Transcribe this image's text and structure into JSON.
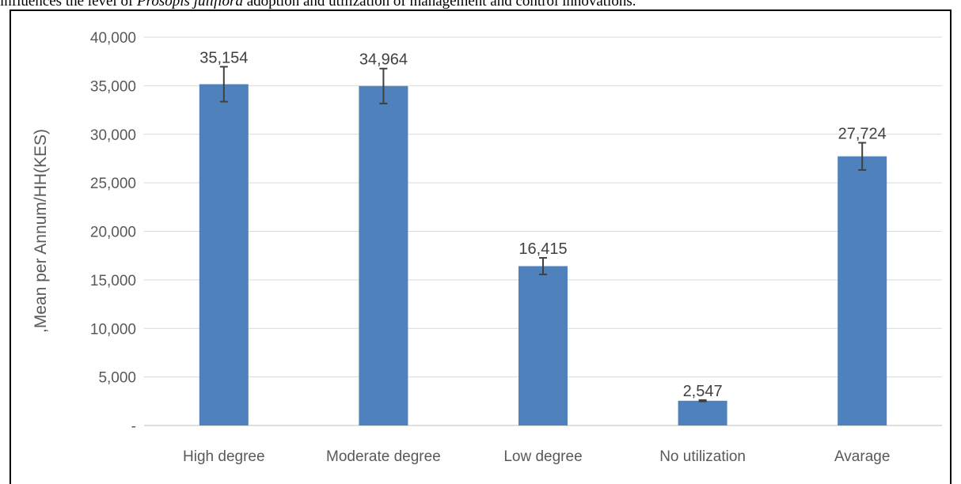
{
  "caption": {
    "before": "influences the level of ",
    "italic": "Prosopis juliflora",
    "after": " adoption and utilization of management and control innovations."
  },
  "chart_data": {
    "type": "bar",
    "title": "",
    "xlabel": "",
    "ylabel": ",Mean per Annum/HH(KES)",
    "categories": [
      "High degree",
      "Moderate degree",
      "Low degree",
      "No utilization",
      "Avarage"
    ],
    "values": [
      35154,
      34964,
      16415,
      2547,
      27724
    ],
    "value_labels": [
      "35,154",
      "34,964",
      "16,415",
      "2,547",
      "27,724"
    ],
    "error": [
      1800,
      1800,
      850,
      70,
      1400
    ],
    "ylim": [
      0,
      40000
    ],
    "yticks": [
      0,
      5000,
      10000,
      15000,
      20000,
      25000,
      30000,
      35000,
      40000
    ],
    "ytick_labels": [
      "-",
      "5,000",
      "10,000",
      "15,000",
      "20,000",
      "25,000",
      "30,000",
      "35,000",
      "40,000"
    ],
    "grid": true,
    "bar_color": "#4f81bd",
    "error_color": "#404040"
  }
}
